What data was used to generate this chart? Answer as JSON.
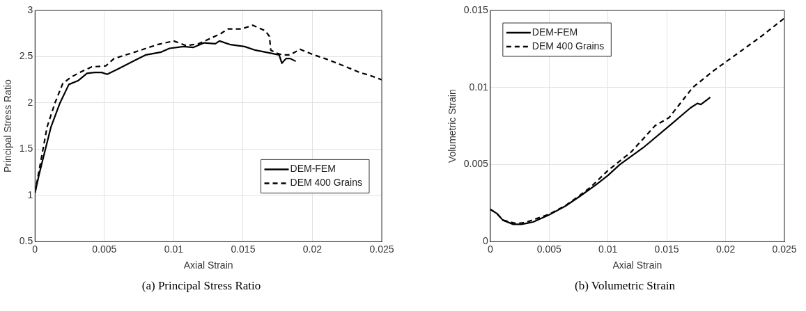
{
  "chart_data": [
    {
      "type": "line",
      "xlabel": "Axial Strain",
      "ylabel": "Principal Stress Ratio",
      "annotations": [
        "(a) Principal Stress Ratio"
      ],
      "xlim": [
        0,
        0.025
      ],
      "xticks": [
        0,
        0.005,
        0.01,
        0.015,
        0.02,
        0.025
      ],
      "ylim": [
        0.5,
        3
      ],
      "yticks": [
        0.5,
        1,
        1.5,
        2,
        2.5,
        3
      ],
      "grid": true,
      "legend": "bottom right",
      "marker": "none",
      "series": [
        {
          "name": "DEM-FEM",
          "color": "#000000",
          "line_style": "solid",
          "x": [
            0,
            0.0003,
            0.00115,
            0.0018,
            0.00244,
            0.0031,
            0.00375,
            0.0043,
            0.0048,
            0.0052,
            0.0059,
            0.0072,
            0.008,
            0.0091,
            0.0097,
            0.0107,
            0.0114,
            0.0122,
            0.013,
            0.0133,
            0.0141,
            0.0151,
            0.0159,
            0.0166,
            0.0176,
            0.0178,
            0.0181,
            0.0184,
            0.0188
          ],
          "values": [
            1.03,
            1.23,
            1.74,
            2.0,
            2.2,
            2.24,
            2.32,
            2.33,
            2.33,
            2.31,
            2.36,
            2.46,
            2.52,
            2.55,
            2.59,
            2.61,
            2.6,
            2.65,
            2.64,
            2.67,
            2.63,
            2.61,
            2.57,
            2.55,
            2.52,
            2.43,
            2.48,
            2.48,
            2.45
          ]
        },
        {
          "name": "DEM 400 Grains",
          "color": "#000000",
          "line_style": "dashed",
          "x": [
            0,
            0.00087,
            0.00144,
            0.002,
            0.0026,
            0.0035,
            0.0041,
            0.0051,
            0.0057,
            0.0072,
            0.0088,
            0.01,
            0.0109,
            0.0118,
            0.0134,
            0.0139,
            0.0149,
            0.0157,
            0.0166,
            0.0169,
            0.017,
            0.0174,
            0.0178,
            0.0184,
            0.0191,
            0.0201,
            0.0209,
            0.0216,
            0.0226,
            0.0234,
            0.0241,
            0.025
          ],
          "values": [
            1.03,
            1.74,
            2.0,
            2.21,
            2.28,
            2.35,
            2.39,
            2.4,
            2.48,
            2.55,
            2.63,
            2.67,
            2.62,
            2.64,
            2.75,
            2.8,
            2.8,
            2.84,
            2.78,
            2.72,
            2.57,
            2.54,
            2.52,
            2.52,
            2.58,
            2.52,
            2.48,
            2.44,
            2.38,
            2.33,
            2.3,
            2.25
          ]
        }
      ]
    },
    {
      "type": "line",
      "xlabel": "Axial Strain",
      "ylabel": "Volumetric Strain",
      "annotations": [
        "(b) Volumetric Strain"
      ],
      "xlim": [
        0,
        0.025
      ],
      "xticks": [
        0,
        0.005,
        0.01,
        0.015,
        0.02,
        0.025
      ],
      "ylim": [
        0,
        0.015
      ],
      "yticks": [
        0,
        0.005,
        0.01,
        0.015
      ],
      "grid": true,
      "legend": "top left",
      "marker": "none",
      "series": [
        {
          "name": "DEM-FEM",
          "color": "#000000",
          "line_style": "solid",
          "x": [
            0,
            0.00056,
            0.00106,
            0.00195,
            0.00265,
            0.00365,
            0.005,
            0.0064,
            0.0076,
            0.009,
            0.01,
            0.011,
            0.013,
            0.0152,
            0.017,
            0.0176,
            0.0179,
            0.0187
          ],
          "values": [
            0.0021,
            0.00183,
            0.0014,
            0.00113,
            0.00113,
            0.00128,
            0.00174,
            0.00232,
            0.00294,
            0.0037,
            0.0043,
            0.005,
            0.0061,
            0.0075,
            0.00867,
            0.00897,
            0.0089,
            0.00936
          ]
        },
        {
          "name": "DEM 400 Grains",
          "color": "#000000",
          "line_style": "dashed",
          "x": [
            0,
            0.00056,
            0.00106,
            0.0022,
            0.003,
            0.005,
            0.0064,
            0.0076,
            0.0085,
            0.01,
            0.012,
            0.014,
            0.0152,
            0.0172,
            0.019,
            0.021,
            0.023,
            0.025
          ],
          "values": [
            0.0021,
            0.00183,
            0.0014,
            0.00118,
            0.00125,
            0.00178,
            0.00235,
            0.003,
            0.00352,
            0.00462,
            0.00584,
            0.00752,
            0.00805,
            0.01,
            0.0111,
            0.0122,
            0.0133,
            0.0145
          ]
        }
      ]
    }
  ]
}
